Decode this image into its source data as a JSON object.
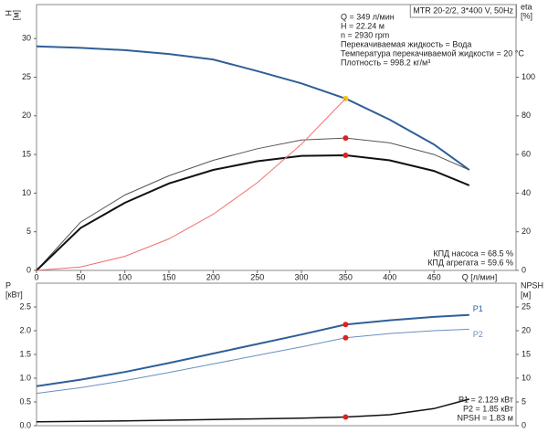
{
  "chart_data": [
    {
      "type": "line",
      "title": "MTR 20-2/2, 3*400 V, 50Hz",
      "ylabel": "H",
      "yunit": "[м]",
      "y2label": "eta",
      "y2unit": "[%]",
      "xlabel": "Q [л/мин]",
      "x": [
        0,
        50,
        100,
        150,
        200,
        250,
        300,
        350,
        400,
        450,
        490
      ],
      "xlim": [
        0,
        543
      ],
      "xticks": [
        0,
        50,
        100,
        150,
        200,
        250,
        300,
        350,
        400,
        450
      ],
      "ylim": [
        0,
        34.4
      ],
      "yticks": [
        0,
        5,
        10,
        15,
        20,
        25,
        30
      ],
      "y2lim": [
        0,
        137.6
      ],
      "y2ticks": [
        0,
        20,
        40,
        60,
        80,
        100
      ],
      "series": [
        {
          "color": "#2f5f98",
          "width": 2,
          "values": [
            29,
            28.8,
            28.5,
            28.0,
            27.3,
            25.8,
            24.2,
            22.24,
            19.5,
            16.3,
            13.0
          ],
          "marker_index": 7,
          "marker_color": "#f5c518"
        },
        {
          "color": "#555555",
          "width": 1,
          "axis": "y2",
          "values": [
            0,
            25,
            39,
            49,
            57,
            63,
            67.5,
            68.5,
            66,
            60,
            52
          ],
          "marker_index": 7,
          "marker_color": "#e02020"
        },
        {
          "color": "#111111",
          "width": 2,
          "axis": "y2",
          "values": [
            0,
            22,
            35,
            45,
            52,
            56.5,
            59.3,
            59.6,
            57,
            51.5,
            44
          ],
          "marker_index": 7,
          "marker_color": "#e02020"
        },
        {
          "color": "#f07070",
          "width": 1,
          "values": [
            0,
            0.45,
            1.82,
            4.08,
            7.26,
            11.35,
            16.34,
            22.24,
            null,
            null,
            null
          ]
        }
      ],
      "info_lines": [
        "Q = 349 л/мин",
        "H = 22.24 м",
        "n = 2930 rpm",
        "Перекачиваемая жидкость = Вода",
        "Температура перекачиваемой жидкости = 20 °C",
        "Плотность = 998.2 кг/м³"
      ],
      "result_lines": [
        "КПД насоса = 68.5 %",
        "КПД агрегата = 59.6 %"
      ]
    },
    {
      "type": "line",
      "ylabel": "P",
      "yunit": "[кВт]",
      "y2label": "NPSH",
      "y2unit": "[м]",
      "x": [
        0,
        50,
        100,
        150,
        200,
        250,
        300,
        350,
        400,
        450,
        490
      ],
      "xlim": [
        0,
        543
      ],
      "ylim": [
        0,
        3.0
      ],
      "yticks": [
        {
          "value": 0,
          "label": "0.0"
        },
        {
          "value": 0.5,
          "label": "0.5"
        },
        {
          "value": 1,
          "label": "1.0"
        },
        {
          "value": 1.5,
          "label": "1.5"
        },
        {
          "value": 2,
          "label": "2.0"
        },
        {
          "value": 2.5,
          "label": "2.5"
        }
      ],
      "y2lim": [
        0,
        30
      ],
      "y2ticks": [
        0,
        5,
        10,
        15,
        20,
        25
      ],
      "series": [
        {
          "name": "P1",
          "color": "#2f5f98",
          "width": 2,
          "values": [
            0.83,
            0.97,
            1.13,
            1.32,
            1.52,
            1.72,
            1.92,
            2.129,
            2.22,
            2.29,
            2.33
          ],
          "marker_index": 7,
          "marker_color": "#e02020"
        },
        {
          "name": "P2",
          "color": "#6a8fbf",
          "width": 1,
          "values": [
            0.68,
            0.8,
            0.95,
            1.12,
            1.3,
            1.48,
            1.66,
            1.85,
            1.94,
            2.0,
            2.03
          ],
          "marker_index": 7,
          "marker_color": "#e02020"
        },
        {
          "color": "#111111",
          "width": 1.5,
          "axis": "y2",
          "values": [
            0.8,
            0.9,
            1.0,
            1.15,
            1.3,
            1.45,
            1.6,
            1.83,
            2.3,
            3.6,
            5.6
          ],
          "marker_index": 7,
          "marker_color": "#e02020"
        }
      ],
      "result_lines": [
        "P1 = 2.129 кВт",
        "P2 = 1.85 кВт",
        "NPSH = 1.83 м"
      ]
    }
  ]
}
